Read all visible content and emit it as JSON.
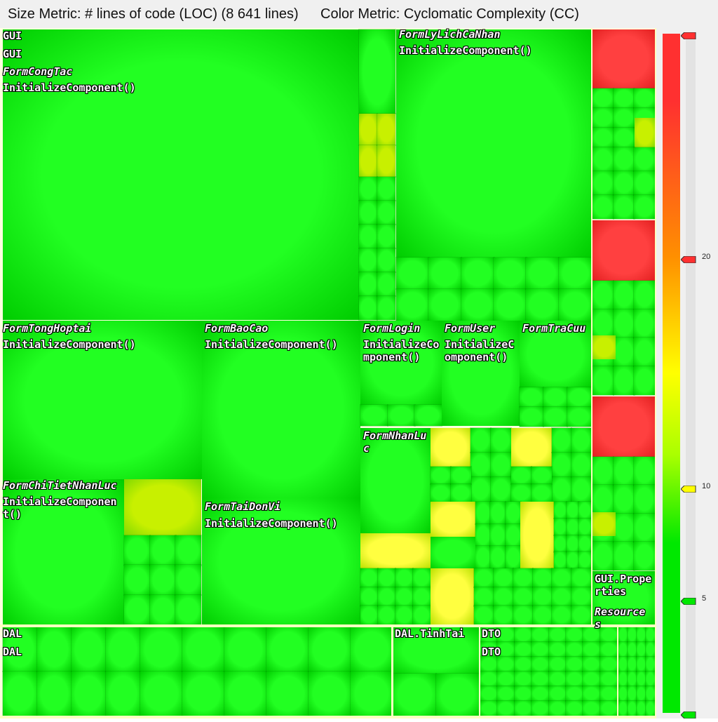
{
  "header": {
    "size_metric": "Size Metric: # lines of code (LOC) (8 641 lines)",
    "color_metric": "Color Metric: Cyclomatic Complexity (CC)"
  },
  "chart_data": {
    "type": "heatmap",
    "title": "",
    "size_metric": "# lines of code (LOC)",
    "total_lines": 8641,
    "color_metric": "Cyclomatic Complexity (CC)",
    "color_scale": {
      "ticks": [
        20,
        10,
        5
      ],
      "low_color": "#00e800",
      "mid_color": "#ffff00",
      "high_color": "#ff3030"
    },
    "labels": {
      "gui_1": "GUI",
      "gui_2": "GUI",
      "form_cong_tac": "FormCongTac",
      "ic_cong_tac": "InitializeComponent()",
      "form_ly_lich": "FormLyLichCaNhan",
      "ic_ly_lich": "InitializeComponent()",
      "form_tong_hop": "FormTongHoptai",
      "ic_tong_hop": "InitializeComponent()",
      "form_bao_cao": "FormBaoCao",
      "ic_bao_cao": "InitializeComponent()",
      "form_login": "FormLogin",
      "ic_login": "InitializeComponent()",
      "form_user": "FormUser",
      "ic_user": "InitializeComponent()",
      "form_tra_cuu": "FormTraCuu",
      "form_chi_tiet": "FormChiTietNhanLuc",
      "ic_chi_tiet": "InitializeComponent()",
      "form_tai_don_vi": "FormTaiDonVi",
      "ic_tai_don_vi": "InitializeComponent()",
      "form_nhan_luc": "FormNhanLuc",
      "gui_properties": "GUI.Properties",
      "resources": "Resources",
      "dal_1": "DAL",
      "dal_2": "DAL",
      "dal_tinh_tai": "DAL.TinhTai",
      "dto_1": "DTO",
      "dto_2": "DTO"
    }
  },
  "colors": {
    "low": "#00e800",
    "mid": "#ffff00",
    "high": "#ff3030",
    "border": "#ffffc0"
  }
}
